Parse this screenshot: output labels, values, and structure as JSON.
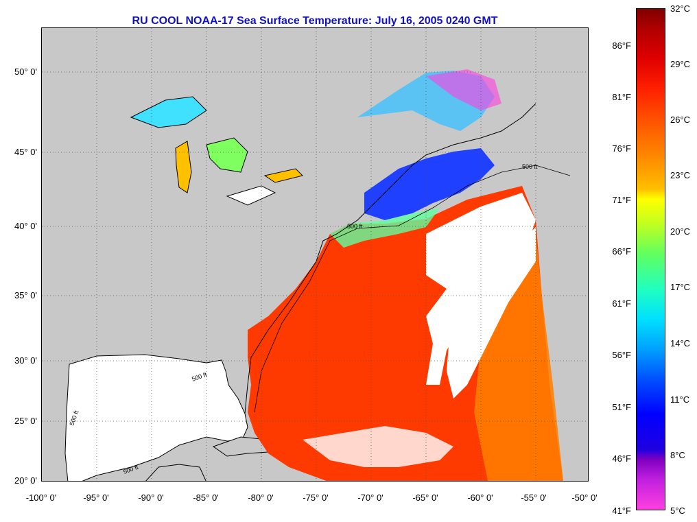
{
  "title": "RU COOL  NOAA-17  Sea Surface Temperature:  July 16, 2005 0240 GMT",
  "colors": {
    "land": "#c8c8c8",
    "title": "#1010c8",
    "cloud": "#ffffff"
  },
  "lat_labels": [
    "50° 0'",
    "45° 0'",
    "40° 0'",
    "35° 0'",
    "30° 0'",
    "25° 0'",
    "20° 0'"
  ],
  "lon_labels": [
    "-100° 0'",
    "-95° 0'",
    "-90° 0'",
    "-85° 0'",
    "-80° 0'",
    "-75° 0'",
    "-70° 0'",
    "-65° 0'",
    "-60° 0'",
    "-55° 0'",
    "-50° 0'"
  ],
  "contour_label": "500 ft",
  "colorbar": {
    "celsius": [
      "32°C",
      "29°C",
      "26°C",
      "23°C",
      "20°C",
      "17°C",
      "14°C",
      "11°C",
      "8°C",
      "5°C"
    ],
    "fahrenheit": [
      "86°F",
      "81°F",
      "76°F",
      "71°F",
      "66°F",
      "61°F",
      "56°F",
      "51°F",
      "46°F",
      "41°F"
    ]
  }
}
